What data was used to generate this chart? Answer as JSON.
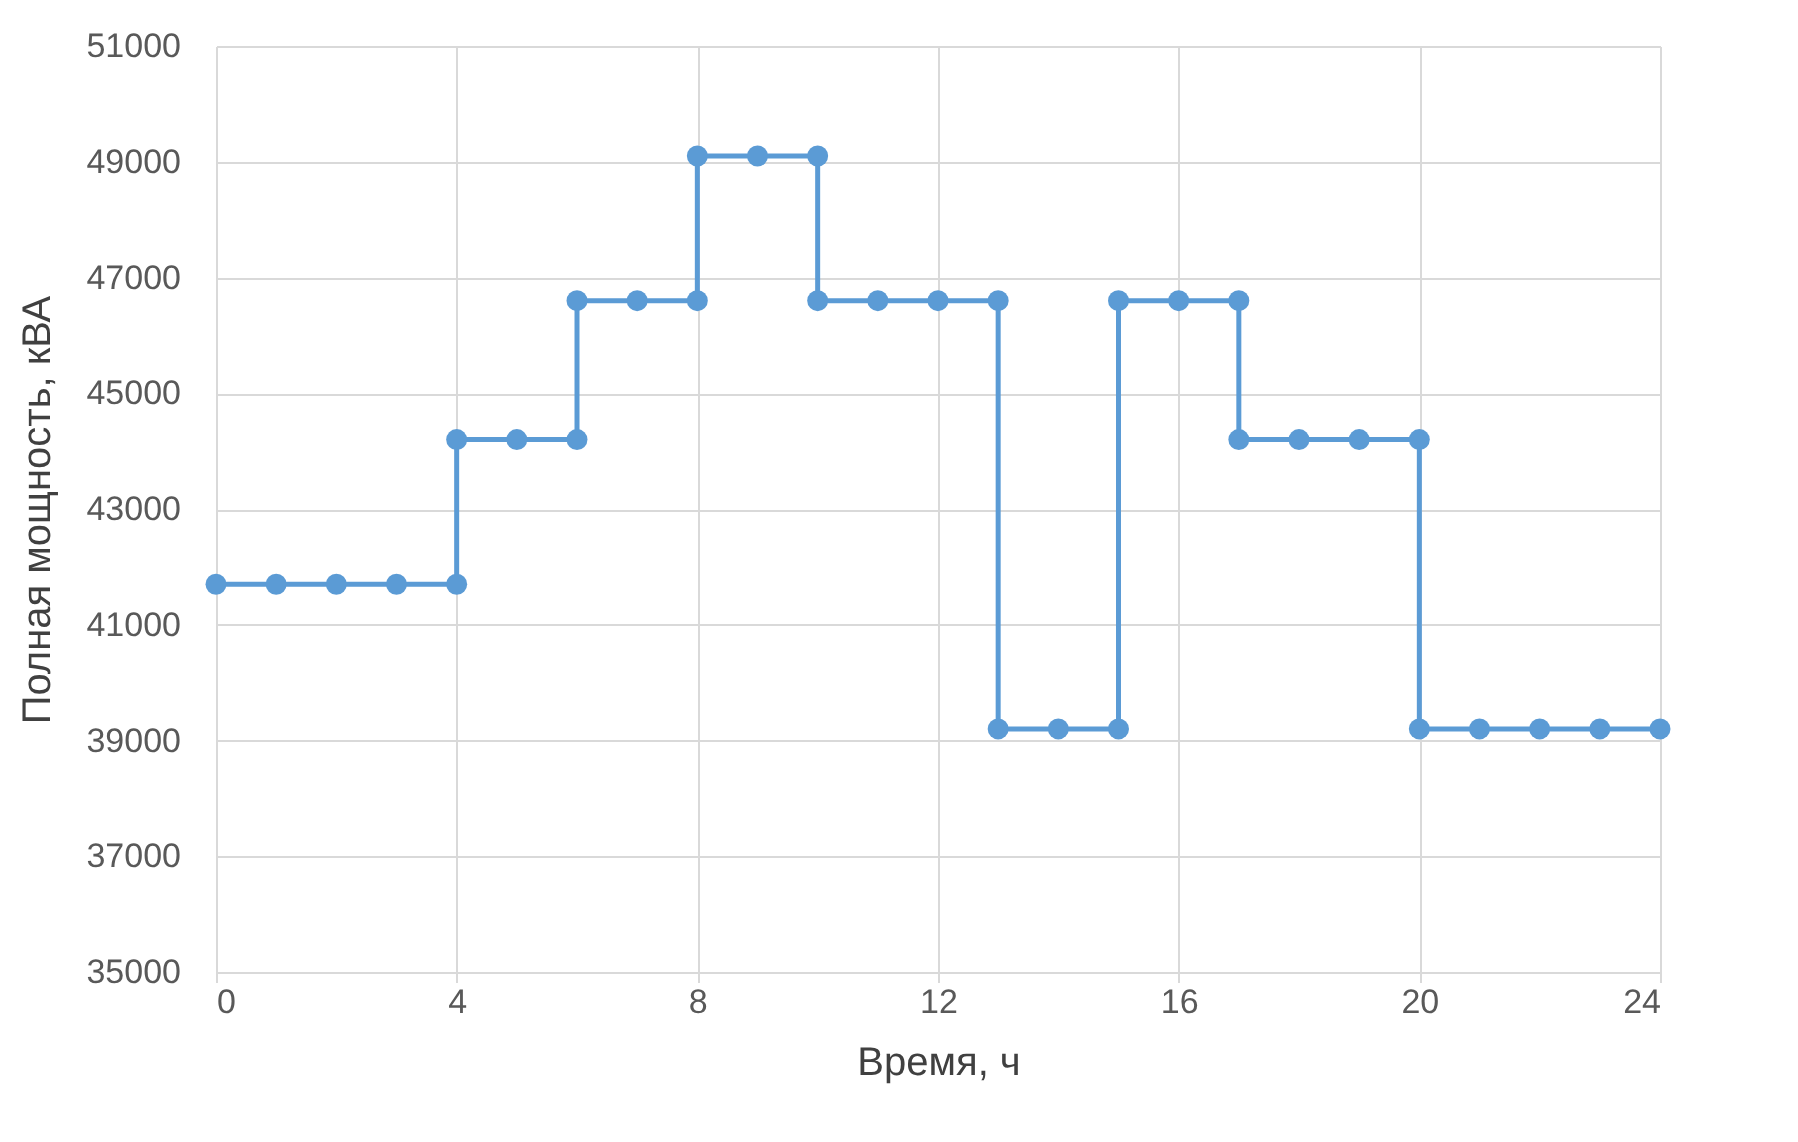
{
  "chart_data": {
    "type": "line",
    "xlabel": "Время, ч",
    "ylabel": "Полная мощность,  кВА",
    "x": [
      0,
      1,
      2,
      3,
      4,
      4,
      5,
      6,
      6,
      7,
      8,
      8,
      9,
      10,
      10,
      11,
      12,
      13,
      13,
      14,
      15,
      15,
      16,
      17,
      17,
      18,
      19,
      20,
      20,
      21,
      22,
      23,
      24
    ],
    "series": [
      {
        "color": "#5b9bd5",
        "values": [
          41700,
          41700,
          41700,
          41700,
          41700,
          44200,
          44200,
          44200,
          46600,
          46600,
          46600,
          49100,
          49100,
          49100,
          46600,
          46600,
          46600,
          46600,
          39200,
          39200,
          39200,
          46600,
          46600,
          46600,
          44200,
          44200,
          44200,
          44200,
          39200,
          39200,
          39200,
          39200,
          39200
        ]
      }
    ],
    "xlim": [
      0,
      24
    ],
    "xticks": [
      0,
      4,
      8,
      12,
      16,
      20,
      24
    ],
    "ylim": [
      35000,
      51000
    ],
    "yticks": [
      35000,
      37000,
      39000,
      41000,
      43000,
      45000,
      47000,
      49000,
      51000
    ],
    "grid": true,
    "marker": "circle",
    "line_style": "solid"
  }
}
